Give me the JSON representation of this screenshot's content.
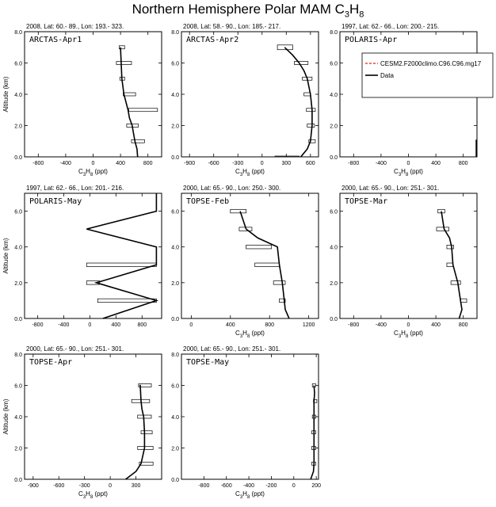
{
  "title": {
    "main": "Northern Hemisphere Polar MAM C",
    "sub": "3",
    "sub2": "H",
    "sub3": "8"
  },
  "colors": {
    "model": "#e8221b",
    "data": "#000000"
  },
  "legend": {
    "model": "CESM2.F2000climo.C96.C96.mg17",
    "data": "Data"
  },
  "chart_data": [
    {
      "type": "line",
      "label": "ARCTAS-Apr1",
      "header": "2008, Lat:  60.- 89., Lon: 193.- 323.",
      "xlabel": "C3H8 (ppt)",
      "ylabel": "Altitude (km)",
      "xlim": [
        -1000,
        1000
      ],
      "ylim": [
        0,
        8
      ],
      "xticks": [
        -800,
        -400,
        0,
        400,
        800
      ],
      "yticks": [
        0.0,
        2.0,
        4.0,
        6.0,
        8.0
      ],
      "profile": {
        "x": [
          650,
          640,
          610,
          590,
          570,
          530,
          510,
          480,
          450,
          420,
          400
        ],
        "y": [
          0,
          0.5,
          1.0,
          1.5,
          2.0,
          2.5,
          3.0,
          3.5,
          4.0,
          5.0,
          7.0
        ]
      },
      "boxes": [
        [
          380,
          460,
          6.9,
          7.1
        ],
        [
          340,
          560,
          5.9,
          6.1
        ],
        [
          390,
          460,
          4.9,
          5.1
        ],
        [
          440,
          620,
          3.9,
          4.1
        ],
        [
          520,
          940,
          2.9,
          3.1
        ],
        [
          490,
          660,
          1.9,
          2.1
        ],
        [
          560,
          750,
          0.9,
          1.1
        ]
      ]
    },
    {
      "type": "line",
      "label": "ARCTAS-Apr2",
      "header": "2008, Lat:  58.- 90., Lon: 185.- 217.",
      "xlabel": "C3H8 (ppt)",
      "ylabel": "",
      "xlim": [
        -1000,
        700
      ],
      "ylim": [
        0,
        8
      ],
      "xticks": [
        -900,
        -600,
        -300,
        0,
        300,
        600
      ],
      "yticks": [
        0.0,
        2.0,
        4.0,
        6.0,
        8.0
      ],
      "profile": {
        "x": [
          480,
          560,
          600,
          620,
          620,
          600,
          560,
          520,
          460,
          380,
          280
        ],
        "y": [
          0,
          0.5,
          1.0,
          2.0,
          3.0,
          4.0,
          5.0,
          5.5,
          6.0,
          6.5,
          7.0
        ]
      },
      "boxes": [
        [
          190,
          380,
          6.85,
          7.15
        ],
        [
          400,
          570,
          5.9,
          6.1
        ],
        [
          500,
          620,
          4.9,
          5.1
        ],
        [
          520,
          600,
          3.9,
          4.1
        ],
        [
          550,
          660,
          2.9,
          3.1
        ],
        [
          560,
          650,
          1.9,
          2.1
        ],
        [
          580,
          660,
          0.9,
          1.1
        ],
        [
          160,
          460,
          0,
          0.05
        ]
      ]
    },
    {
      "type": "line",
      "label": "POLARIS-Apr",
      "header": "1997, Lat: 62.- 66., Lon: 200.- 215.",
      "xlabel": "C3H8 (ppt)",
      "ylabel": "",
      "xlim": [
        -1000,
        1000
      ],
      "ylim": [
        0,
        8
      ],
      "xticks": [
        -800,
        -400,
        0,
        400,
        800
      ],
      "yticks": [
        0.0,
        2.0,
        4.0,
        6.0,
        8.0
      ],
      "profile": {
        "x": [
          990,
          990
        ],
        "y": [
          0,
          1.1
        ]
      },
      "boxes": []
    },
    {
      "type": "line",
      "label": "POLARIS-May",
      "header": "1997, Lat: 62.- 66., Lon: 201.- 216.",
      "xlabel": "",
      "ylabel": "Altitude (km)",
      "xlim": [
        -1000,
        1100
      ],
      "ylim": [
        0,
        7
      ],
      "xticks": [
        -800,
        -400,
        0,
        400,
        800
      ],
      "yticks": [
        0.0,
        2.0,
        4.0,
        6.0
      ],
      "profile": {
        "x": [
          200,
          1020,
          100,
          1020,
          1020,
          -50,
          1020,
          1020
        ],
        "y": [
          0,
          1.0,
          2.0,
          3.0,
          4.0,
          5.0,
          6.0,
          7.0
        ]
      },
      "boxes": [
        [
          120,
          1020,
          0.9,
          1.1
        ],
        [
          -50,
          150,
          1.9,
          2.1
        ],
        [
          -50,
          1020,
          2.9,
          3.1
        ]
      ]
    },
    {
      "type": "line",
      "label": "TOPSE-Feb",
      "header": "2000, Lat: 65.- 90., Lon: 250.- 300.",
      "xlabel": "C3H8 (ppt)",
      "ylabel": "",
      "xlim": [
        -100,
        1300
      ],
      "ylim": [
        0,
        7
      ],
      "xticks": [
        0,
        400,
        800,
        1200
      ],
      "yticks": [
        0.0,
        2.0,
        4.0,
        6.0
      ],
      "profile": {
        "x": [
          1000,
          960,
          950,
          930,
          900,
          880,
          680,
          560,
          500
        ],
        "y": [
          0,
          0.5,
          1.0,
          2.0,
          3.0,
          4.0,
          4.5,
          5.0,
          6.0
        ]
      },
      "boxes": [
        [
          400,
          560,
          5.9,
          6.1
        ],
        [
          490,
          620,
          4.9,
          5.1
        ],
        [
          560,
          820,
          3.9,
          4.1
        ],
        [
          650,
          900,
          2.9,
          3.1
        ],
        [
          840,
          960,
          1.9,
          2.1
        ],
        [
          900,
          960,
          0.9,
          1.1
        ]
      ]
    },
    {
      "type": "line",
      "label": "TOPSE-Mar",
      "header": "2000, Lat: 65.- 90., Lon: 251.- 301.",
      "xlabel": "C3H8 (ppt)",
      "ylabel": "",
      "xlim": [
        -1000,
        1000
      ],
      "ylim": [
        0,
        7
      ],
      "xticks": [
        -800,
        -400,
        0,
        400,
        800
      ],
      "yticks": [
        0.0,
        2.0,
        4.0,
        6.0
      ],
      "profile": {
        "x": [
          740,
          780,
          760,
          720,
          650,
          630,
          600,
          520,
          480
        ],
        "y": [
          0,
          0.5,
          1.0,
          2.0,
          3.0,
          4.0,
          4.5,
          5.0,
          6.0
        ]
      },
      "boxes": [
        [
          430,
          530,
          5.9,
          6.1
        ],
        [
          410,
          590,
          4.9,
          5.1
        ],
        [
          560,
          660,
          3.9,
          4.1
        ],
        [
          560,
          650,
          2.9,
          3.1
        ],
        [
          620,
          760,
          1.9,
          2.1
        ],
        [
          760,
          850,
          0.9,
          1.1
        ]
      ]
    },
    {
      "type": "line",
      "label": "TOPSE-Apr",
      "header": "2000, Lat: 65.- 90., Lon: 251.- 301.",
      "xlabel": "C3H8 (ppt)",
      "ylabel": "Altitude (km)",
      "xlim": [
        -1000,
        600
      ],
      "ylim": [
        0,
        8
      ],
      "xticks": [
        -900,
        -600,
        -300,
        0,
        300
      ],
      "yticks": [
        0.0,
        2.0,
        4.0,
        6.0,
        8.0
      ],
      "profile": {
        "x": [
          180,
          300,
          360,
          400,
          400,
          390,
          370,
          360,
          350,
          340
        ],
        "y": [
          0,
          0.5,
          1.0,
          2.0,
          3.0,
          4.0,
          4.5,
          5.0,
          6.0,
          6.0
        ]
      },
      "boxes": [
        [
          330,
          480,
          5.9,
          6.1
        ],
        [
          250,
          460,
          4.9,
          5.1
        ],
        [
          320,
          480,
          3.9,
          4.1
        ],
        [
          360,
          490,
          2.9,
          3.1
        ],
        [
          320,
          500,
          1.9,
          2.1
        ],
        [
          340,
          500,
          0.9,
          1.1
        ]
      ]
    },
    {
      "type": "line",
      "label": "TOPSE-May",
      "header": "2000, Lat: 65.- 90., Lon: 251.- 301.",
      "xlabel": "C3H8 (ppt)",
      "ylabel": "",
      "xlim": [
        -1000,
        220
      ],
      "ylim": [
        0,
        8
      ],
      "xticks": [
        -800,
        -600,
        -400,
        -200,
        0,
        200
      ],
      "yticks": [
        0.0,
        2.0,
        4.0,
        6.0,
        8.0
      ],
      "profile": {
        "x": [
          150,
          175,
          180,
          180,
          180,
          180,
          180,
          185,
          180
        ],
        "y": [
          0,
          0.5,
          1.0,
          2.0,
          3.0,
          4.0,
          5.0,
          5.5,
          6.0
        ]
      },
      "boxes": [
        [
          165,
          195,
          5.9,
          6.1
        ],
        [
          175,
          205,
          4.9,
          5.1
        ],
        [
          165,
          195,
          3.9,
          4.1
        ],
        [
          160,
          195,
          2.9,
          3.1
        ],
        [
          160,
          195,
          1.9,
          2.1
        ],
        [
          160,
          195,
          0.9,
          1.1
        ]
      ]
    }
  ]
}
